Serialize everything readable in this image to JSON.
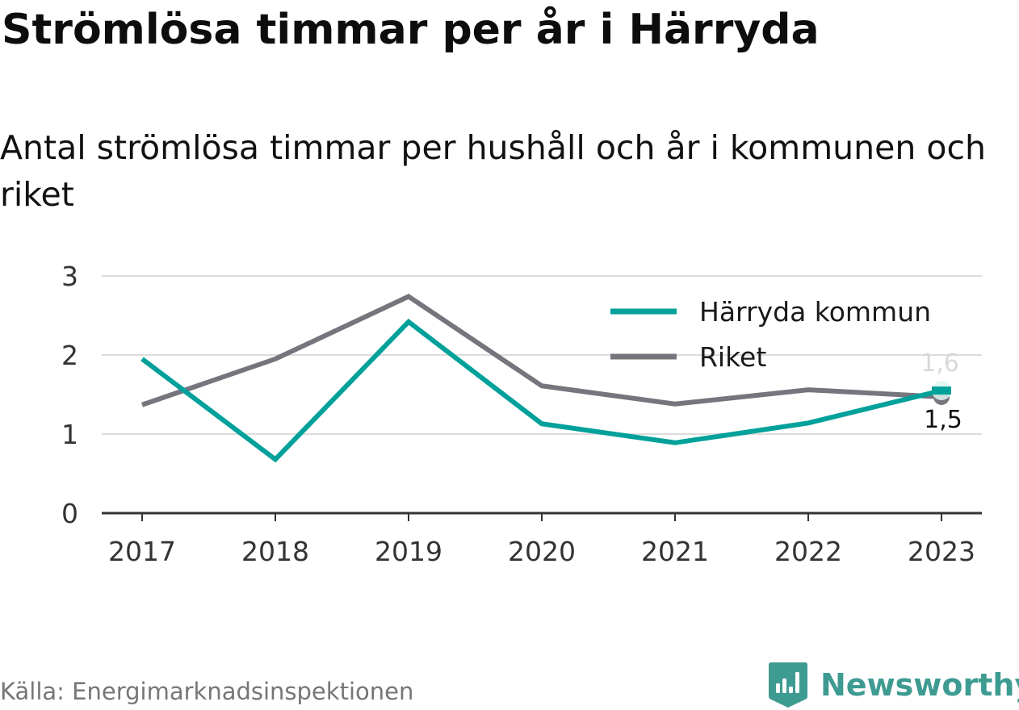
{
  "title": "Strömlösa timmar per år i Härryda",
  "subtitle": "Antal strömlösa timmar per hushåll och år i kommunen och riket",
  "source": "Källa: Energimarknadsinspektionen",
  "brand": {
    "name": "Newsworthy",
    "icon": "newsworthy-logo-icon",
    "color": "#3e9b92"
  },
  "chart_data": {
    "type": "line",
    "title": "",
    "xlabel": "",
    "ylabel": "",
    "x": [
      "2017",
      "2018",
      "2019",
      "2020",
      "2021",
      "2022",
      "2023"
    ],
    "ylim": [
      0,
      3
    ],
    "yticks": [
      "0",
      "1",
      "2",
      "3"
    ],
    "grid": true,
    "legend_position": "top-right",
    "series": [
      {
        "name": "Härryda kommun",
        "color": "#00a19a",
        "values": [
          1.95,
          0.68,
          2.42,
          1.13,
          0.89,
          1.14,
          1.55
        ]
      },
      {
        "name": "Riket",
        "color": "#75757e",
        "values": [
          1.37,
          1.95,
          2.74,
          1.61,
          1.38,
          1.56,
          1.47
        ]
      }
    ],
    "end_labels": [
      {
        "text": "1,6",
        "color": "#d8d8d8"
      },
      {
        "text": "1,5",
        "color": "#111111"
      }
    ]
  }
}
